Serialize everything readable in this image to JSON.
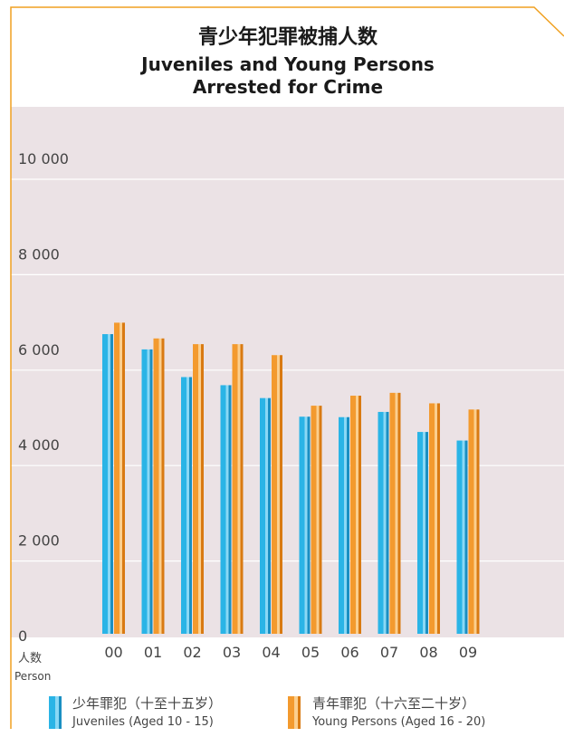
{
  "colors": {
    "frame": "#f0a020",
    "plot_bg": "#ebe2e5",
    "grid": "#ffffff",
    "juveniles": "#2ab4e6",
    "young_persons": "#f39a2e"
  },
  "chart_data": {
    "type": "bar",
    "title_zh": "青少年犯罪被捕人数",
    "title_en_line1": "Juveniles and Young Persons",
    "title_en_line2": "Arrested for Crime",
    "ylabel_zh": "人数",
    "ylabel_en": "Person",
    "ylim": [
      0,
      10000
    ],
    "y_ticks": [
      {
        "value": 0,
        "label": "0"
      },
      {
        "value": 2000,
        "label": "2 000"
      },
      {
        "value": 4000,
        "label": "4 000"
      },
      {
        "value": 6000,
        "label": "6 000"
      },
      {
        "value": 8000,
        "label": "8 000"
      },
      {
        "value": 10000,
        "label": "10 000"
      }
    ],
    "grid": true,
    "legend_position": "bottom",
    "categories": [
      "00",
      "01",
      "02",
      "03",
      "04",
      "05",
      "06",
      "07",
      "08",
      "09"
    ],
    "series": [
      {
        "name_zh": "少年罪犯（十至十五岁）",
        "name_en": "Juveniles (Aged 10 - 15)",
        "color_key": "juveniles",
        "values": [
          6280,
          5960,
          5380,
          5210,
          4940,
          4550,
          4540,
          4650,
          4230,
          4050
        ]
      },
      {
        "name_zh": "青年罪犯（十六至二十岁）",
        "name_en": "Young Persons (Aged 16 - 20)",
        "color_key": "young_persons",
        "values": [
          6520,
          6190,
          6070,
          6070,
          5840,
          4780,
          4990,
          5050,
          4830,
          4700
        ]
      }
    ]
  }
}
